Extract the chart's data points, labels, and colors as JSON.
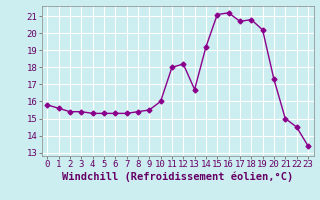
{
  "x": [
    0,
    1,
    2,
    3,
    4,
    5,
    6,
    7,
    8,
    9,
    10,
    11,
    12,
    13,
    14,
    15,
    16,
    17,
    18,
    19,
    20,
    21,
    22,
    23
  ],
  "y": [
    15.8,
    15.6,
    15.4,
    15.4,
    15.3,
    15.3,
    15.3,
    15.3,
    15.4,
    15.5,
    16.0,
    18.0,
    18.2,
    16.7,
    19.2,
    21.1,
    21.2,
    20.7,
    20.8,
    20.2,
    17.3,
    15.0,
    14.5,
    13.4
  ],
  "line_color": "#8B008B",
  "marker": "D",
  "marker_size": 2.5,
  "line_width": 1.0,
  "bg_color": "#cdeef0",
  "grid_color": "#ffffff",
  "xlabel": "Windchill (Refroidissement éolien,°C)",
  "tick_fontsize": 6.5,
  "xlabel_fontsize": 7.5,
  "xlim": [
    -0.5,
    23.5
  ],
  "ylim": [
    12.8,
    21.6
  ],
  "yticks": [
    13,
    14,
    15,
    16,
    17,
    18,
    19,
    20,
    21
  ],
  "xticks": [
    0,
    1,
    2,
    3,
    4,
    5,
    6,
    7,
    8,
    9,
    10,
    11,
    12,
    13,
    14,
    15,
    16,
    17,
    18,
    19,
    20,
    21,
    22,
    23
  ]
}
